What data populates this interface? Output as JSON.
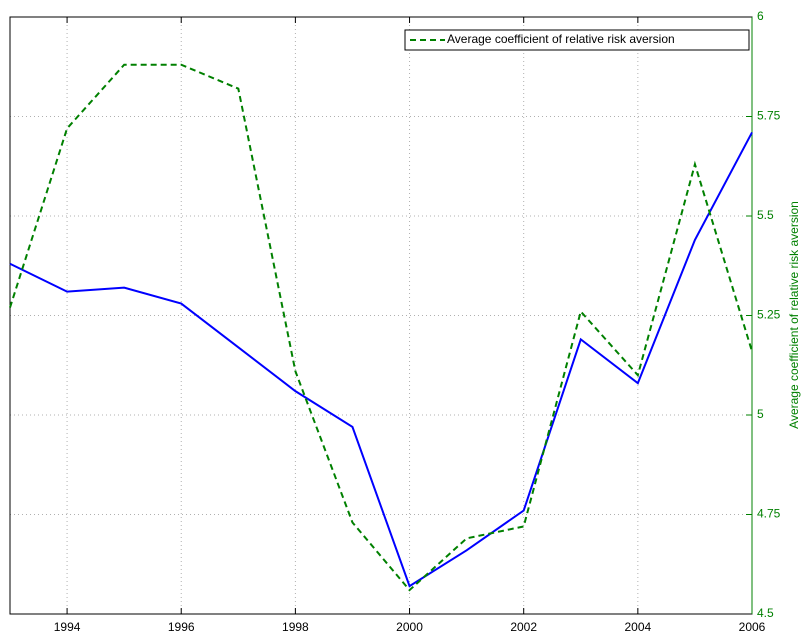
{
  "chart_data": {
    "type": "line",
    "y2label": "Average coefficient of relative risk aversion",
    "x": [
      1993,
      1994,
      1995,
      1996,
      1997,
      1998,
      1999,
      2000,
      2001,
      2002,
      2003,
      2004,
      2005,
      2006
    ],
    "series": [
      {
        "color": "#0000ff",
        "axis": "y2",
        "dashed": false,
        "values": [
          5.38,
          5.31,
          5.32,
          5.28,
          5.17,
          5.06,
          4.97,
          4.57,
          4.66,
          4.76,
          5.19,
          5.08,
          5.44,
          5.71
        ]
      },
      {
        "name": "Average coefficient of relative risk aversion",
        "color": "#008000",
        "axis": "y2",
        "dashed": true,
        "values": [
          5.27,
          5.72,
          5.88,
          5.88,
          5.82,
          5.11,
          4.73,
          4.56,
          4.69,
          4.72,
          5.26,
          5.1,
          5.63,
          5.16
        ]
      }
    ],
    "xlim": [
      1993,
      2006
    ],
    "xticks": [
      1994,
      1996,
      1998,
      2000,
      2002,
      2004,
      2006
    ],
    "y2lim": [
      4.5,
      6
    ],
    "y2ticks": [
      4.5,
      4.75,
      5,
      5.25,
      5.5,
      5.75,
      6
    ],
    "grid": true,
    "legend": "top-right",
    "y2color": "#008000"
  }
}
